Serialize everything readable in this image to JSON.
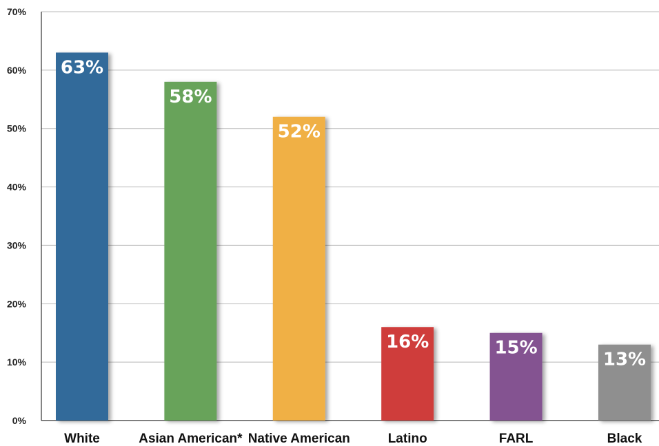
{
  "chart_data": {
    "type": "bar",
    "categories": [
      "White",
      "Asian American*",
      "Native American",
      "Latino",
      "FARL",
      "Black"
    ],
    "values": [
      63,
      58,
      52,
      16,
      15,
      13
    ],
    "data_labels": [
      "63%",
      "58%",
      "52%",
      "16%",
      "15%",
      "13%"
    ],
    "colors": [
      "#336a9a",
      "#68a35a",
      "#f0b045",
      "#cf3d3a",
      "#845291",
      "#8f8f8f"
    ],
    "ylim": [
      0,
      70
    ],
    "yticks": [
      0,
      10,
      20,
      30,
      40,
      50,
      60,
      70
    ],
    "ytick_labels": [
      "0%",
      "10%",
      "20%",
      "30%",
      "40%",
      "50%",
      "60%",
      "70%"
    ],
    "grid": true,
    "legend": "none"
  }
}
